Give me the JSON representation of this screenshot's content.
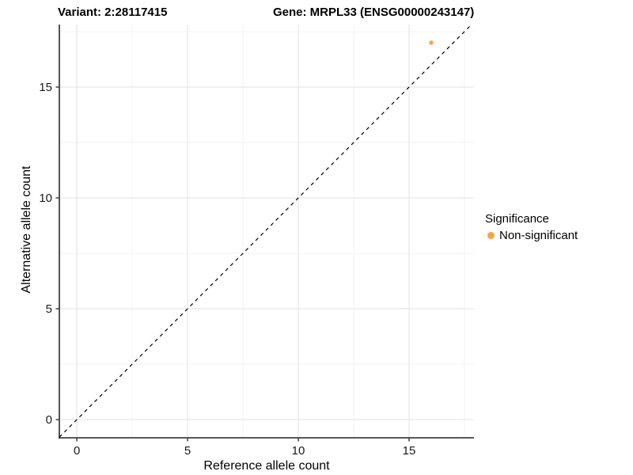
{
  "chart_data": {
    "type": "scatter",
    "title_left": "Variant: 2:28117415",
    "title_right": "Gene: MRPL33 (ENSG00000243147)",
    "xlabel": "Reference allele count",
    "ylabel": "Alternative allele count",
    "xlim": [
      -0.79,
      17.93
    ],
    "ylim": [
      -0.82,
      17.82
    ],
    "x_ticks": [
      0,
      5,
      10,
      15
    ],
    "y_ticks": [
      0,
      5,
      10,
      15
    ],
    "x_minor_ticks": [
      2.5,
      7.5,
      12.5,
      17.5
    ],
    "y_minor_ticks": [
      2.5,
      7.5,
      12.5,
      17.5
    ],
    "grid": true,
    "identity_line": {
      "show": true,
      "style": "dashed",
      "equation": "y = x",
      "color": "#000000"
    },
    "series": [
      {
        "name": "Non-significant",
        "color": "#F9A242",
        "points": [
          {
            "x": 16,
            "y": 17
          }
        ]
      }
    ],
    "legend": {
      "position": "right",
      "title": "Significance",
      "entries": [
        {
          "label": "Non-significant",
          "color": "#F9A242"
        }
      ]
    },
    "colors": {
      "point": "#F9A242",
      "grid_major": "#E6E6E6",
      "grid_minor": "#F3F3F3",
      "axis_line": "#404040",
      "identity_line": "#000000",
      "background": "#FFFFFF"
    }
  }
}
